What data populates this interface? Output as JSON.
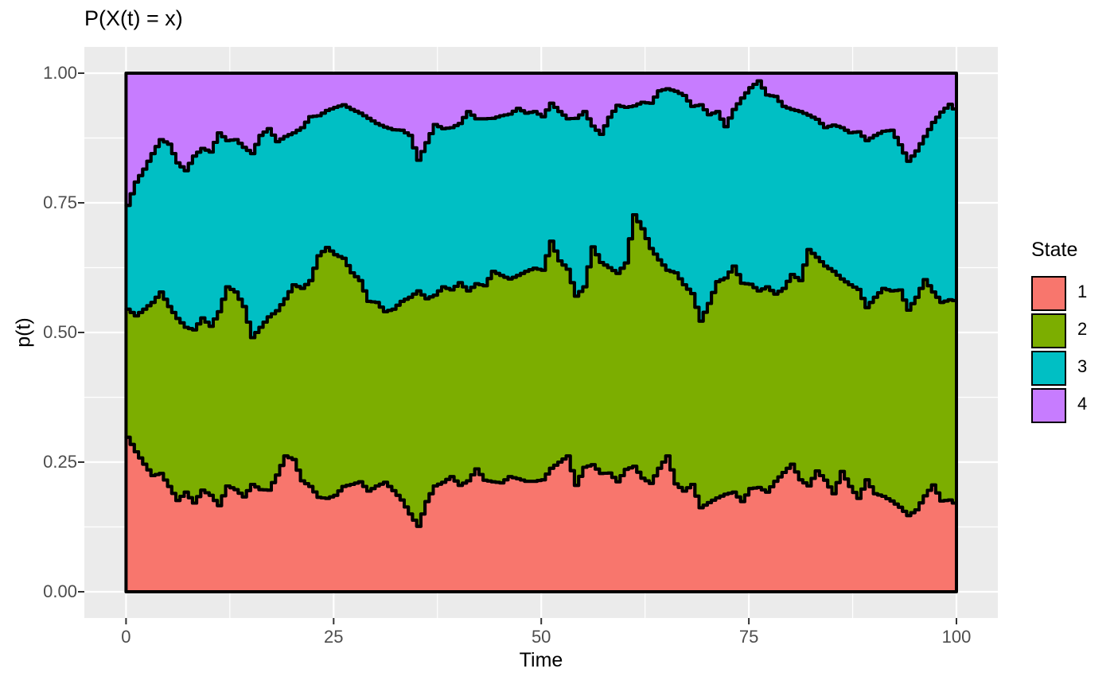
{
  "title": "P(X(t) = x)",
  "axes": {
    "x": {
      "title": "Time",
      "tick_labels": [
        "0",
        "25",
        "50",
        "75",
        "100"
      ],
      "tick_values": [
        0,
        25,
        50,
        75,
        100
      ],
      "minor_tick_values": [
        12.5,
        37.5,
        62.5,
        87.5
      ],
      "range": [
        0,
        100
      ]
    },
    "y": {
      "title": "p(t)",
      "tick_labels": [
        "0.00",
        "0.25",
        "0.50",
        "0.75",
        "1.00"
      ],
      "tick_values": [
        0,
        0.25,
        0.5,
        0.75,
        1.0
      ],
      "minor_tick_values": [
        0.125,
        0.375,
        0.625,
        0.875
      ],
      "range": [
        0,
        1
      ]
    }
  },
  "legend": {
    "title": "State",
    "entries": [
      {
        "label": "1",
        "color": "#F8766D"
      },
      {
        "label": "2",
        "color": "#7CAE00"
      },
      {
        "label": "3",
        "color": "#00BFC4"
      },
      {
        "label": "4",
        "color": "#C77CFF"
      }
    ]
  },
  "colors": {
    "panel_background": "#EBEBEB",
    "gridline": "#FFFFFF",
    "tick_mark": "#333333",
    "axis_text": "#4D4D4D",
    "outline": "#000000",
    "figure_background": "#FFFFFF"
  },
  "chart_data": {
    "type": "area",
    "stacked": true,
    "step_interpolation": true,
    "title": "P(X(t) = x)",
    "xlabel": "Time",
    "ylabel": "p(t)",
    "xlim": [
      0,
      100
    ],
    "ylim": [
      0,
      1
    ],
    "x_start": 0,
    "x_step": 1,
    "baseline": 0,
    "grid": true,
    "legend_position": "right",
    "series": [
      {
        "name": "1",
        "color": "#F8766D",
        "upper": [
          0.298,
          0.27,
          0.246,
          0.224,
          0.228,
          0.203,
          0.176,
          0.192,
          0.171,
          0.196,
          0.186,
          0.166,
          0.204,
          0.197,
          0.183,
          0.207,
          0.197,
          0.196,
          0.225,
          0.262,
          0.255,
          0.214,
          0.203,
          0.182,
          0.18,
          0.186,
          0.203,
          0.207,
          0.212,
          0.194,
          0.204,
          0.211,
          0.195,
          0.177,
          0.15,
          0.126,
          0.174,
          0.204,
          0.211,
          0.222,
          0.205,
          0.214,
          0.237,
          0.215,
          0.212,
          0.21,
          0.222,
          0.218,
          0.213,
          0.213,
          0.216,
          0.238,
          0.25,
          0.262,
          0.205,
          0.24,
          0.245,
          0.228,
          0.229,
          0.212,
          0.236,
          0.242,
          0.219,
          0.209,
          0.238,
          0.262,
          0.208,
          0.194,
          0.207,
          0.162,
          0.172,
          0.181,
          0.188,
          0.192,
          0.174,
          0.199,
          0.201,
          0.192,
          0.213,
          0.23,
          0.246,
          0.216,
          0.204,
          0.233,
          0.215,
          0.189,
          0.232,
          0.203,
          0.18,
          0.216,
          0.189,
          0.184,
          0.175,
          0.163,
          0.147,
          0.158,
          0.185,
          0.206,
          0.175,
          0.177,
          0.165
        ]
      },
      {
        "name": "2",
        "color": "#7CAE00",
        "upper": [
          0.545,
          0.532,
          0.545,
          0.558,
          0.578,
          0.55,
          0.527,
          0.51,
          0.505,
          0.528,
          0.512,
          0.54,
          0.588,
          0.578,
          0.55,
          0.49,
          0.51,
          0.53,
          0.542,
          0.565,
          0.592,
          0.585,
          0.6,
          0.648,
          0.664,
          0.65,
          0.643,
          0.615,
          0.6,
          0.56,
          0.558,
          0.54,
          0.545,
          0.56,
          0.568,
          0.58,
          0.565,
          0.572,
          0.588,
          0.582,
          0.596,
          0.58,
          0.594,
          0.59,
          0.618,
          0.61,
          0.603,
          0.61,
          0.618,
          0.624,
          0.62,
          0.676,
          0.638,
          0.622,
          0.57,
          0.588,
          0.665,
          0.635,
          0.625,
          0.614,
          0.634,
          0.727,
          0.7,
          0.662,
          0.64,
          0.62,
          0.615,
          0.592,
          0.575,
          0.522,
          0.556,
          0.598,
          0.605,
          0.628,
          0.595,
          0.593,
          0.58,
          0.588,
          0.574,
          0.585,
          0.612,
          0.6,
          0.66,
          0.645,
          0.628,
          0.618,
          0.603,
          0.592,
          0.583,
          0.548,
          0.568,
          0.585,
          0.58,
          0.582,
          0.543,
          0.568,
          0.602,
          0.578,
          0.558,
          0.563,
          0.56
        ]
      },
      {
        "name": "3",
        "color": "#00BFC4",
        "upper": [
          0.745,
          0.79,
          0.815,
          0.845,
          0.872,
          0.863,
          0.827,
          0.812,
          0.84,
          0.855,
          0.848,
          0.885,
          0.87,
          0.872,
          0.857,
          0.845,
          0.88,
          0.893,
          0.868,
          0.878,
          0.885,
          0.895,
          0.916,
          0.918,
          0.928,
          0.934,
          0.939,
          0.93,
          0.923,
          0.913,
          0.903,
          0.896,
          0.891,
          0.89,
          0.88,
          0.832,
          0.866,
          0.901,
          0.893,
          0.895,
          0.903,
          0.926,
          0.912,
          0.912,
          0.913,
          0.918,
          0.921,
          0.932,
          0.923,
          0.926,
          0.916,
          0.942,
          0.926,
          0.912,
          0.913,
          0.926,
          0.898,
          0.882,
          0.915,
          0.938,
          0.934,
          0.937,
          0.944,
          0.942,
          0.966,
          0.97,
          0.965,
          0.957,
          0.936,
          0.939,
          0.92,
          0.926,
          0.897,
          0.93,
          0.952,
          0.972,
          0.985,
          0.958,
          0.955,
          0.936,
          0.93,
          0.926,
          0.919,
          0.911,
          0.895,
          0.9,
          0.895,
          0.885,
          0.887,
          0.87,
          0.88,
          0.888,
          0.89,
          0.862,
          0.83,
          0.85,
          0.878,
          0.905,
          0.925,
          0.94,
          0.922
        ]
      },
      {
        "name": "4",
        "color": "#C77CFF",
        "upper_constant": 1.0
      }
    ]
  }
}
